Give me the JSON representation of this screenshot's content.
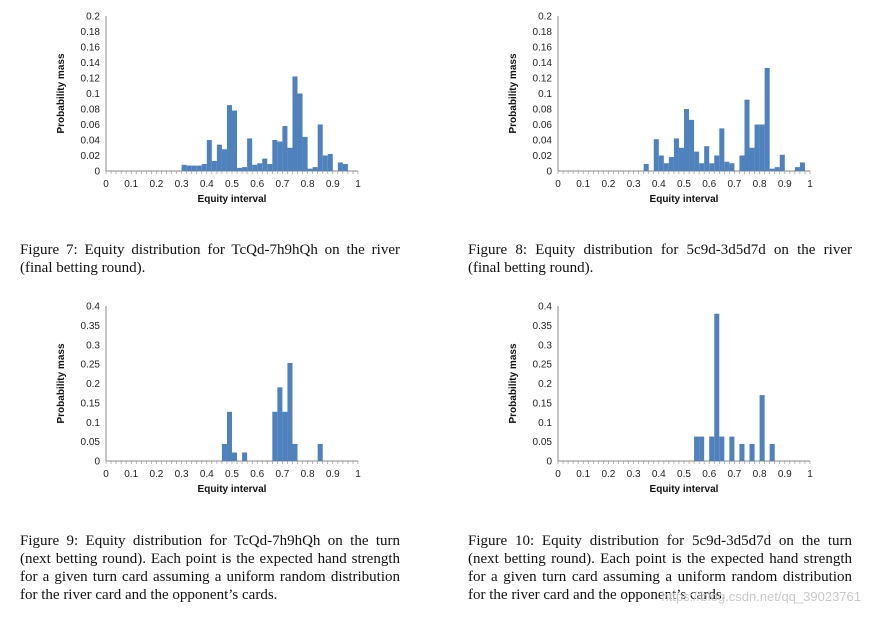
{
  "chart_data": [
    {
      "type": "bar",
      "id": "fig7",
      "xlabel": "Equity interval",
      "ylabel": "Probability mass",
      "xlim": [
        0,
        1
      ],
      "ylim": [
        0,
        0.2
      ],
      "bins": 50,
      "y_ticks": [
        "0.2",
        "0.18",
        "0.16",
        "0.14",
        "0.12",
        "0.1",
        "0.08",
        "0.06",
        "0.04",
        "0.02",
        "0"
      ],
      "x_ticks": [
        "0",
        "0.1",
        "0.2",
        "0.3",
        "0.4",
        "0.5",
        "0.6",
        "0.7",
        "0.8",
        "0.9",
        "1"
      ],
      "values": [
        0,
        0,
        0,
        0,
        0,
        0,
        0,
        0,
        0,
        0,
        0,
        0,
        0,
        0,
        0,
        0.008,
        0.007,
        0.007,
        0.007,
        0.009,
        0.04,
        0.013,
        0.034,
        0.028,
        0.085,
        0.078,
        0.004,
        0.005,
        0.042,
        0.008,
        0.01,
        0.016,
        0.009,
        0.04,
        0.038,
        0.058,
        0.03,
        0.122,
        0.1,
        0.044,
        0.003,
        0.005,
        0.06,
        0.02,
        0.022,
        0,
        0.011,
        0.009,
        0,
        0
      ]
    },
    {
      "type": "bar",
      "id": "fig8",
      "xlabel": "Equity interval",
      "ylabel": "Probability mass",
      "xlim": [
        0,
        1
      ],
      "ylim": [
        0,
        0.2
      ],
      "bins": 50,
      "y_ticks": [
        "0.2",
        "0.18",
        "0.16",
        "0.14",
        "0.12",
        "0.1",
        "0.08",
        "0.06",
        "0.04",
        "0.02",
        "0"
      ],
      "x_ticks": [
        "0",
        "0.1",
        "0.2",
        "0.3",
        "0.4",
        "0.5",
        "0.6",
        "0.7",
        "0.8",
        "0.9",
        "1"
      ],
      "values": [
        0,
        0,
        0,
        0,
        0,
        0,
        0,
        0,
        0,
        0,
        0,
        0,
        0,
        0,
        0,
        0,
        0,
        0.009,
        0,
        0.041,
        0.02,
        0.01,
        0.018,
        0.042,
        0.03,
        0.08,
        0.066,
        0.025,
        0.01,
        0.032,
        0.01,
        0.02,
        0.055,
        0.012,
        0.01,
        0,
        0.02,
        0.092,
        0.03,
        0.06,
        0.06,
        0.133,
        0.003,
        0.005,
        0.021,
        0,
        0,
        0.005,
        0.011,
        0
      ]
    },
    {
      "type": "bar",
      "id": "fig9",
      "xlabel": "Equity interval",
      "ylabel": "Probability mass",
      "xlim": [
        0,
        1
      ],
      "ylim": [
        0,
        0.4
      ],
      "bins": 50,
      "y_ticks": [
        "0.4",
        "0.35",
        "0.3",
        "0.25",
        "0.2",
        "0.15",
        "0.1",
        "0.05",
        "0"
      ],
      "x_ticks": [
        "0",
        "0.1",
        "0.2",
        "0.3",
        "0.4",
        "0.5",
        "0.6",
        "0.7",
        "0.8",
        "0.9",
        "1"
      ],
      "values": [
        0,
        0,
        0,
        0,
        0,
        0,
        0,
        0,
        0,
        0,
        0,
        0,
        0,
        0,
        0,
        0,
        0,
        0,
        0,
        0,
        0,
        0,
        0,
        0.044,
        0.127,
        0.022,
        0,
        0.022,
        0,
        0,
        0,
        0,
        0,
        0.127,
        0.19,
        0.127,
        0.253,
        0.044,
        0,
        0,
        0,
        0,
        0.044,
        0,
        0,
        0,
        0,
        0,
        0,
        0
      ]
    },
    {
      "type": "bar",
      "id": "fig10",
      "xlabel": "Equity interval",
      "ylabel": "Probability mass",
      "xlim": [
        0,
        1
      ],
      "ylim": [
        0,
        0.4
      ],
      "bins": 50,
      "y_ticks": [
        "0.4",
        "0.35",
        "0.3",
        "0.25",
        "0.2",
        "0.15",
        "0.1",
        "0.05",
        "0"
      ],
      "x_ticks": [
        "0",
        "0.1",
        "0.2",
        "0.3",
        "0.4",
        "0.5",
        "0.6",
        "0.7",
        "0.8",
        "0.9",
        "1"
      ],
      "values": [
        0,
        0,
        0,
        0,
        0,
        0,
        0,
        0,
        0,
        0,
        0,
        0,
        0,
        0,
        0,
        0,
        0,
        0,
        0,
        0,
        0,
        0,
        0,
        0,
        0,
        0,
        0,
        0.063,
        0.063,
        0,
        0.063,
        0.38,
        0.063,
        0,
        0.063,
        0,
        0.044,
        0,
        0.044,
        0,
        0.17,
        0,
        0.044,
        0,
        0,
        0,
        0,
        0,
        0,
        0
      ]
    }
  ],
  "captions": {
    "fig7": "Figure 7: Equity distribution for TcQd-7h9hQh on the river (final betting round).",
    "fig8": "Figure 8: Equity distribution for 5c9d-3d5d7d on the river (final betting round).",
    "fig9": "Figure 9: Equity distribution for TcQd-7h9hQh on the turn (next betting round). Each point is the expected hand strength for a given turn card assuming a uniform random distribution for the river card and the opponent’s cards.",
    "fig10": "Figure 10: Equity distribution for 5c9d-3d5d7d on the turn (next betting round). Each point is the expected hand strength for a given turn card assuming a uniform random distribution for the river card and the opponent’s cards."
  },
  "watermark": "https://blog.csdn.net/qq_39023761",
  "colors": {
    "bar": "#4f81bd",
    "axis": "#888888"
  }
}
